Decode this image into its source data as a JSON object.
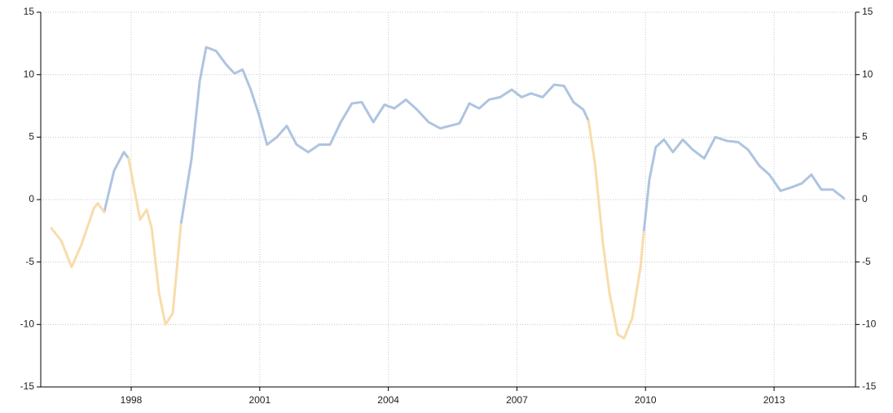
{
  "chart_data": {
    "type": "line",
    "x": [
      1996.14,
      1996.37,
      1996.61,
      1996.84,
      1997.13,
      1997.22,
      1997.37,
      1997.6,
      1997.83,
      1997.94,
      1998.08,
      1998.21,
      1998.36,
      1998.48,
      1998.65,
      1998.8,
      1998.97,
      1999.16,
      1999.41,
      1999.6,
      1999.75,
      1999.98,
      2000.22,
      2000.41,
      2000.6,
      2000.79,
      2000.98,
      2001.17,
      2001.4,
      2001.63,
      2001.86,
      2002.13,
      2002.39,
      2002.64,
      2002.89,
      2003.15,
      2003.38,
      2003.65,
      2003.91,
      2004.14,
      2004.41,
      2004.67,
      2004.94,
      2005.21,
      2005.43,
      2005.66,
      2005.89,
      2006.12,
      2006.35,
      2006.61,
      2006.88,
      2007.11,
      2007.33,
      2007.6,
      2007.87,
      2008.1,
      2008.32,
      2008.55,
      2008.67,
      2008.82,
      2009.01,
      2009.16,
      2009.35,
      2009.5,
      2009.69,
      2009.88,
      2009.96,
      2010.09,
      2010.24,
      2010.43,
      2010.64,
      2010.87,
      2011.1,
      2011.37,
      2011.63,
      2011.9,
      2012.16,
      2012.39,
      2012.66,
      2012.89,
      2013.15,
      2013.42,
      2013.65,
      2013.87,
      2014.1,
      2014.37,
      2014.63
    ],
    "series": [
      {
        "color": "#aec4e0",
        "values": [
          null,
          null,
          null,
          null,
          null,
          null,
          -1.0,
          2.3,
          3.8,
          3.3,
          null,
          null,
          null,
          null,
          null,
          null,
          null,
          -2.0,
          3.3,
          9.5,
          12.2,
          11.9,
          10.8,
          10.1,
          10.4,
          8.8,
          6.8,
          4.4,
          5.0,
          5.9,
          4.4,
          3.8,
          4.4,
          4.4,
          6.2,
          7.7,
          7.8,
          6.2,
          7.6,
          7.3,
          8.0,
          7.2,
          6.2,
          5.7,
          5.9,
          6.1,
          7.7,
          7.3,
          8.0,
          8.2,
          8.8,
          8.2,
          8.5,
          8.2,
          9.2,
          9.1,
          7.8,
          7.2,
          6.3,
          null,
          null,
          null,
          null,
          null,
          null,
          null,
          -2.6,
          1.6,
          4.2,
          4.8,
          3.8,
          4.8,
          4.0,
          3.3,
          5.0,
          4.7,
          4.6,
          4.0,
          2.7,
          2.0,
          0.7,
          1.0,
          1.3,
          2.0,
          0.8,
          0.8,
          0.1
        ]
      },
      {
        "color": "#f8dcab",
        "values": [
          -2.3,
          -3.3,
          -5.4,
          -3.6,
          -0.7,
          -0.3,
          -1.0,
          null,
          null,
          3.3,
          0.7,
          -1.6,
          -0.8,
          -2.3,
          -7.5,
          -10.0,
          -9.1,
          -2.0,
          null,
          null,
          null,
          null,
          null,
          null,
          null,
          null,
          null,
          null,
          null,
          null,
          null,
          null,
          null,
          null,
          null,
          null,
          null,
          null,
          null,
          null,
          null,
          null,
          null,
          null,
          null,
          null,
          null,
          null,
          null,
          null,
          null,
          null,
          null,
          null,
          null,
          null,
          null,
          null,
          6.3,
          2.9,
          -3.6,
          -7.5,
          -10.8,
          -11.1,
          -9.5,
          -5.5,
          -2.6,
          null,
          null,
          null,
          null,
          null,
          null,
          null,
          null,
          null,
          null,
          null,
          null,
          null,
          null,
          null,
          null,
          null,
          null,
          null,
          null
        ]
      }
    ],
    "xlim": [
      1995.89,
      2014.9
    ],
    "xticks": [
      1998,
      2001,
      2004,
      2007,
      2010,
      2013
    ],
    "ylim": [
      -15,
      15
    ],
    "yticks": [
      -15,
      -10,
      -5,
      0,
      5,
      10,
      15
    ],
    "y2lim": [
      -15,
      15
    ],
    "y2ticks": [
      -15,
      -10,
      -5,
      0,
      5,
      10,
      15
    ],
    "grid": true
  }
}
